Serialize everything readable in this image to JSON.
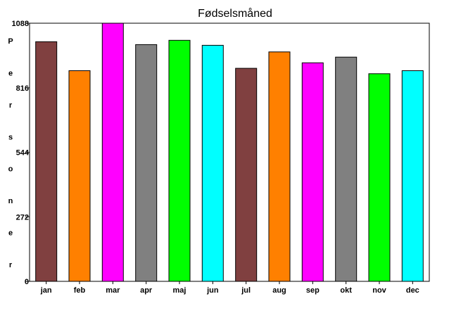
{
  "chart_data": {
    "type": "bar",
    "title": "Fødselsmåned",
    "xlabel": "",
    "ylabel": "Personer",
    "ylim": [
      0,
      1088
    ],
    "yticks": [
      0,
      272,
      544,
      816,
      1088
    ],
    "grid": false,
    "categories": [
      "jan",
      "feb",
      "mar",
      "apr",
      "maj",
      "jun",
      "jul",
      "aug",
      "sep",
      "okt",
      "nov",
      "dec"
    ],
    "values": [
      1010,
      888,
      1088,
      998,
      1016,
      995,
      898,
      967,
      921,
      945,
      875,
      888
    ],
    "colors": [
      "#804040",
      "#ff8000",
      "#ff00ff",
      "#808080",
      "#00ff00",
      "#00ffff",
      "#804040",
      "#ff8000",
      "#ff00ff",
      "#808080",
      "#00ff00",
      "#00ffff"
    ]
  }
}
